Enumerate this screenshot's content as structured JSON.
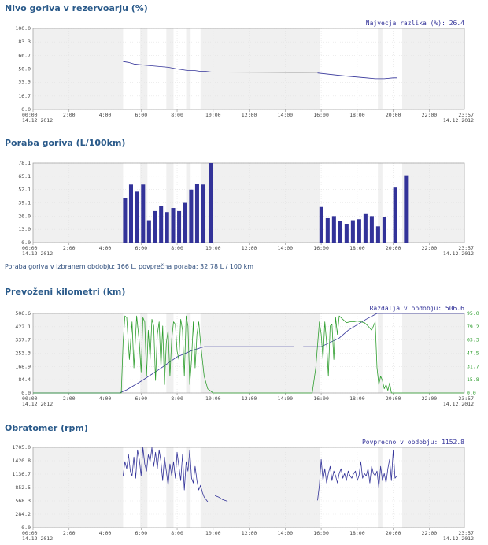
{
  "charts": [
    {
      "title": "Nivo goriva v rezervoarju (%)",
      "annotation": "Najvecja razlika (%): 26.4",
      "note": ""
    },
    {
      "title": "Poraba goriva (L/100km)",
      "annotation": "",
      "note": "Poraba goriva v izbranem obdobju: 166 L, povprečna poraba: 32.78 L / 100 km"
    },
    {
      "title": "Prevoženi kilometri (km)",
      "annotation": "Razdalja v obdobju: 506.6",
      "note": ""
    },
    {
      "title": "Obratomer (rpm)",
      "annotation": "Povprecno v obdobju: 1152.8",
      "note": ""
    }
  ],
  "colors": {
    "primary": "#333399",
    "secondary": "#2e9e2e",
    "band": "#f0f0f0",
    "title": "#2a5a8a"
  },
  "chart_data": [
    {
      "type": "line",
      "title": "Nivo goriva v rezervoarju (%)",
      "x_start": "00:00 14.12.2012",
      "x_end": "23:57 14.12.2012",
      "x_ticks": [
        "00:00",
        "2:00",
        "4:00",
        "6:00",
        "8:00",
        "10:00",
        "12:00",
        "14:00",
        "16:00",
        "18:00",
        "20:00",
        "22:00"
      ],
      "y_ticks": [
        "0.0",
        "16.7",
        "33.3",
        "50.0",
        "66.7",
        "83.3",
        "100.0"
      ],
      "ylim": [
        0,
        100
      ],
      "series": [
        {
          "role": "main",
          "x": [
            5.0,
            5.3,
            5.6,
            6.0,
            6.5,
            7.0,
            7.5,
            8.0,
            8.3,
            8.6,
            9.0,
            9.3,
            9.6,
            10.0,
            10.5,
            10.8
          ],
          "y": [
            59,
            58,
            56,
            55,
            54,
            53,
            52,
            50,
            49,
            48,
            48,
            47,
            47,
            46,
            46,
            46
          ]
        },
        {
          "role": "gap",
          "x": [
            10.8,
            15.8
          ],
          "y": [
            46,
            45
          ]
        },
        {
          "role": "main",
          "x": [
            15.8,
            16.2,
            16.6,
            17.0,
            17.5,
            18.0,
            18.5,
            19.0,
            19.5,
            20.0,
            20.2
          ],
          "y": [
            45,
            44,
            43,
            42,
            41,
            40,
            39,
            38,
            38,
            39,
            39
          ]
        }
      ],
      "bands": [
        [
          0,
          5.0
        ],
        [
          5.95,
          6.35
        ],
        [
          7.4,
          7.8
        ],
        [
          8.5,
          8.75
        ],
        [
          9.3,
          15.95
        ],
        [
          19.15,
          19.4
        ],
        [
          20.5,
          23.95
        ]
      ]
    },
    {
      "type": "bar",
      "title": "Poraba goriva (L/100km)",
      "x_start": "00:00 14.12.2012",
      "x_end": "23:57 14.12.2012",
      "x_ticks": [
        "00:00",
        "2:00",
        "4:00",
        "6:00",
        "8:00",
        "10:00",
        "12:00",
        "14:00",
        "16:00",
        "18:00",
        "20:00",
        "22:00"
      ],
      "y_ticks": [
        "0.0",
        "13.0",
        "26.0",
        "39.1",
        "52.1",
        "65.1",
        "78.1"
      ],
      "ylim": [
        0,
        78.1
      ],
      "bar_width_h": 0.22,
      "bars": [
        {
          "x": 5.0,
          "y": 44
        },
        {
          "x": 5.33,
          "y": 57
        },
        {
          "x": 5.67,
          "y": 50
        },
        {
          "x": 6.0,
          "y": 57
        },
        {
          "x": 6.33,
          "y": 22
        },
        {
          "x": 6.67,
          "y": 31
        },
        {
          "x": 7.0,
          "y": 36
        },
        {
          "x": 7.33,
          "y": 30
        },
        {
          "x": 7.67,
          "y": 34
        },
        {
          "x": 8.0,
          "y": 31
        },
        {
          "x": 8.33,
          "y": 39
        },
        {
          "x": 8.67,
          "y": 52
        },
        {
          "x": 9.0,
          "y": 58
        },
        {
          "x": 9.33,
          "y": 57
        },
        {
          "x": 9.75,
          "y": 78.1
        },
        {
          "x": 15.9,
          "y": 35
        },
        {
          "x": 16.25,
          "y": 24
        },
        {
          "x": 16.6,
          "y": 26
        },
        {
          "x": 16.95,
          "y": 21
        },
        {
          "x": 17.3,
          "y": 18
        },
        {
          "x": 17.65,
          "y": 22
        },
        {
          "x": 18.0,
          "y": 23
        },
        {
          "x": 18.35,
          "y": 28
        },
        {
          "x": 18.7,
          "y": 26
        },
        {
          "x": 19.05,
          "y": 16
        },
        {
          "x": 19.4,
          "y": 25
        },
        {
          "x": 20.0,
          "y": 54
        },
        {
          "x": 20.6,
          "y": 66
        }
      ],
      "bands": [
        [
          0,
          5.0
        ],
        [
          5.95,
          6.35
        ],
        [
          7.4,
          7.8
        ],
        [
          8.5,
          8.75
        ],
        [
          9.3,
          15.95
        ],
        [
          19.15,
          19.4
        ],
        [
          20.5,
          23.95
        ]
      ]
    },
    {
      "type": "line",
      "title": "Prevoženi kilometri (km)",
      "x_start": "00:00 14.12.2012",
      "x_end": "23:57 14.12.2012",
      "x_ticks": [
        "00:00",
        "2:00",
        "4:00",
        "6:00",
        "8:00",
        "10:00",
        "12:00",
        "14:00",
        "16:00",
        "18:00",
        "20:00",
        "22:00"
      ],
      "y_ticks": [
        "0.0",
        "84.4",
        "168.9",
        "253.3",
        "337.7",
        "422.1",
        "506.6"
      ],
      "y2_ticks": [
        "0.0",
        "15.8",
        "31.7",
        "47.5",
        "63.3",
        "79.2",
        "95.0"
      ],
      "ylim": [
        0,
        506.6
      ],
      "y2lim": [
        0,
        95
      ],
      "series": [
        {
          "role": "main",
          "x": [
            0,
            4.8,
            5.2,
            6.0,
            7.0,
            8.0,
            8.8,
            9.5,
            14.5
          ],
          "y": [
            0,
            0,
            20,
            75,
            150,
            230,
            270,
            295,
            295
          ]
        },
        {
          "role": "main",
          "x": [
            15.0,
            16.0,
            17.0,
            17.5,
            18.5,
            19.1,
            20.0,
            23.95
          ],
          "y": [
            295,
            295,
            350,
            400,
            470,
            506.6,
            506.6,
            506.6
          ]
        },
        {
          "role": "secondary",
          "x": [
            0,
            4.5,
            4.9,
            5.0,
            5.1,
            5.2,
            5.35,
            5.5,
            5.6,
            5.75,
            5.9,
            6.0,
            6.1,
            6.2,
            6.3,
            6.4,
            6.5,
            6.6,
            6.7,
            6.8,
            6.9,
            7.0,
            7.1,
            7.2,
            7.3,
            7.4,
            7.5,
            7.6,
            7.7,
            7.8,
            7.9,
            8.0,
            8.1,
            8.2,
            8.3,
            8.4,
            8.5,
            8.6,
            8.7,
            8.8,
            8.9,
            9.0,
            9.1,
            9.2,
            9.3,
            9.4,
            9.5,
            9.7,
            10.0,
            15.5,
            15.7,
            15.9,
            16.0,
            16.1,
            16.2,
            16.3,
            16.4,
            16.5,
            16.6,
            16.7,
            16.8,
            16.9,
            17.0,
            17.2,
            17.4,
            17.6,
            17.8,
            18.0,
            18.2,
            18.4,
            18.6,
            18.8,
            19.0,
            19.1,
            19.2,
            19.3,
            19.4,
            19.5,
            19.6,
            19.7,
            19.8,
            19.9,
            20.0,
            20.2,
            20.4,
            23.95
          ],
          "y": [
            0,
            0,
            0,
            60,
            92,
            90,
            40,
            85,
            30,
            92,
            60,
            25,
            90,
            85,
            20,
            75,
            40,
            88,
            80,
            15,
            70,
            85,
            30,
            80,
            10,
            60,
            75,
            20,
            65,
            85,
            82,
            50,
            40,
            88,
            75,
            20,
            92,
            80,
            10,
            40,
            85,
            30,
            70,
            85,
            60,
            40,
            20,
            5,
            0,
            0,
            30,
            85,
            70,
            40,
            85,
            60,
            20,
            80,
            82,
            40,
            90,
            70,
            92,
            88,
            84,
            85,
            85,
            86,
            85,
            84,
            80,
            75,
            85,
            30,
            10,
            20,
            15,
            5,
            10,
            3,
            12,
            0,
            0,
            0,
            0,
            0
          ]
        }
      ],
      "bands": [
        [
          0,
          5.0
        ],
        [
          5.95,
          6.35
        ],
        [
          7.4,
          7.8
        ],
        [
          8.5,
          8.75
        ],
        [
          9.3,
          15.95
        ],
        [
          19.15,
          19.4
        ],
        [
          20.5,
          23.95
        ]
      ]
    },
    {
      "type": "line",
      "title": "Obratomer (rpm)",
      "x_start": "00:00 14.12.2012",
      "x_end": "23:57 14.12.2012",
      "x_ticks": [
        "00:00",
        "2:00",
        "4:00",
        "6:00",
        "8:00",
        "10:00",
        "12:00",
        "14:00",
        "16:00",
        "18:00",
        "20:00",
        "22:00"
      ],
      "y_ticks": [
        "0.0",
        "284.2",
        "568.3",
        "852.5",
        "1136.7",
        "1420.8",
        "1705.0"
      ],
      "ylim": [
        0,
        1705
      ],
      "series": [
        {
          "role": "main",
          "x": [
            5.0,
            5.1,
            5.2,
            5.3,
            5.4,
            5.5,
            5.6,
            5.7,
            5.8,
            5.9,
            6.0,
            6.1,
            6.2,
            6.3,
            6.4,
            6.5,
            6.6,
            6.7,
            6.8,
            6.9,
            7.0,
            7.1,
            7.2,
            7.3,
            7.4,
            7.5,
            7.6,
            7.7,
            7.8,
            7.9,
            8.0,
            8.1,
            8.2,
            8.3,
            8.4,
            8.5,
            8.6,
            8.7,
            8.8,
            8.9,
            9.0,
            9.1,
            9.2,
            9.3,
            9.4,
            9.5,
            9.6,
            9.7
          ],
          "y": [
            1100,
            1400,
            1250,
            1550,
            1200,
            1100,
            1500,
            1050,
            1650,
            1450,
            1100,
            1700,
            1350,
            1200,
            1550,
            1400,
            1700,
            1300,
            1600,
            1250,
            1650,
            1400,
            1000,
            1500,
            1200,
            900,
            1350,
            1100,
            1400,
            1050,
            1600,
            1300,
            1000,
            1550,
            800,
            1400,
            1200,
            1650,
            1050,
            950,
            1300,
            1000,
            800,
            900,
            750,
            650,
            600,
            550
          ]
        },
        {
          "role": "main",
          "x": [
            10.1,
            10.3,
            10.5,
            10.8
          ],
          "y": [
            680,
            650,
            600,
            560
          ]
        },
        {
          "role": "main",
          "x": [
            15.8,
            15.9,
            16.0,
            16.1,
            16.2,
            16.3,
            16.4,
            16.5,
            16.6,
            16.7,
            16.8,
            16.9,
            17.0,
            17.1,
            17.2,
            17.3,
            17.4,
            17.5,
            17.6,
            17.7,
            17.8,
            17.9,
            18.0,
            18.1,
            18.2,
            18.3,
            18.4,
            18.5,
            18.6,
            18.7,
            18.8,
            18.9,
            19.0,
            19.1,
            19.2,
            19.3,
            19.4,
            19.5,
            19.6,
            19.7,
            19.8,
            19.9,
            20.0,
            20.1,
            20.2
          ],
          "y": [
            580,
            900,
            1450,
            1000,
            1250,
            950,
            1150,
            1300,
            1000,
            1200,
            1100,
            950,
            1150,
            1250,
            1050,
            1150,
            1000,
            1200,
            1100,
            1050,
            1150,
            1200,
            1000,
            1100,
            1400,
            1050,
            1150,
            1100,
            1250,
            950,
            1300,
            1150,
            1100,
            1200,
            850,
            1300,
            1000,
            1150,
            950,
            1250,
            1450,
            1000,
            1650,
            1050,
            1100
          ]
        }
      ],
      "bands": [
        [
          0,
          5.0
        ],
        [
          5.95,
          6.35
        ],
        [
          7.4,
          7.8
        ],
        [
          8.5,
          8.75
        ],
        [
          9.3,
          15.95
        ],
        [
          19.15,
          19.4
        ],
        [
          20.5,
          23.95
        ]
      ]
    }
  ]
}
